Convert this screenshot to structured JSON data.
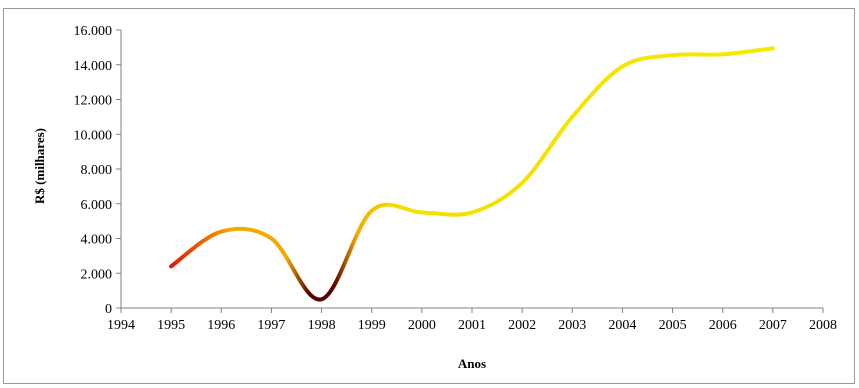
{
  "chart_data": {
    "type": "line",
    "title": "",
    "xlabel": "Anos",
    "ylabel": "R$ (milhares)",
    "xlim": [
      1994,
      2008
    ],
    "ylim": [
      0,
      16000
    ],
    "x_ticks": [
      1994,
      1995,
      1996,
      1997,
      1998,
      1999,
      2000,
      2001,
      2002,
      2003,
      2004,
      2005,
      2006,
      2007,
      2008
    ],
    "x_tick_labels": [
      "1994",
      "1995",
      "1996",
      "1997",
      "1998",
      "1999",
      "2000",
      "2001",
      "2002",
      "2003",
      "2004",
      "2005",
      "2006",
      "2007",
      "2008"
    ],
    "y_ticks": [
      0,
      2000,
      4000,
      6000,
      8000,
      10000,
      12000,
      14000,
      16000
    ],
    "y_tick_labels": [
      "0",
      "2.000",
      "4.000",
      "6.000",
      "8.000",
      "10.000",
      "12.000",
      "14.000",
      "16.000"
    ],
    "grid": false,
    "legend": "none",
    "line_gradient": [
      "#dd1a0a",
      "#f2a900",
      "#f5dd00",
      "#f5ea00"
    ],
    "dip_color": "#5a0000",
    "axis_color": "#808080",
    "series": [
      {
        "x": [
          1995,
          1996,
          1997,
          1998,
          1999,
          2000,
          2001,
          2002,
          2003,
          2004,
          2005,
          2006,
          2007
        ],
        "values": [
          2400,
          4400,
          4000,
          500,
          5600,
          5500,
          5500,
          7200,
          11000,
          13900,
          14550,
          14600,
          14950
        ]
      }
    ]
  }
}
